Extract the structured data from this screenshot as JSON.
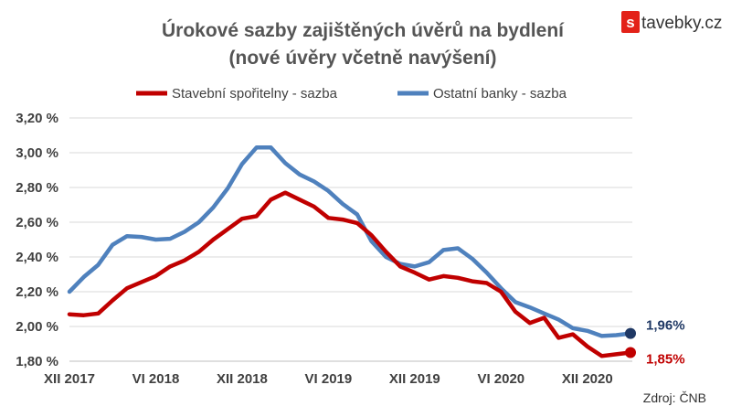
{
  "logo": {
    "mark": "s",
    "text": "tavebky.cz",
    "mark_color": "#e32219"
  },
  "source": "Zdroj: ČNB",
  "chart_data": {
    "type": "line",
    "title": "Úrokové sazby zajištěných úvěrů na bydlení",
    "subtitle": "(nové úvěry včetně navýšení)",
    "xlabel": "",
    "ylabel": "",
    "ylim": [
      1.8,
      3.2
    ],
    "yticks": [
      "1,80 %",
      "2,00 %",
      "2,20 %",
      "2,40 %",
      "2,60 %",
      "2,80 %",
      "3,00 %",
      "3,20 %"
    ],
    "ytick_values": [
      1.8,
      2.0,
      2.2,
      2.4,
      2.6,
      2.8,
      3.0,
      3.2
    ],
    "xticks": [
      "XII 2017",
      "VI 2018",
      "XII 2018",
      "VI 2019",
      "XII 2019",
      "VI 2020",
      "XII 2020"
    ],
    "xtick_index": [
      0,
      6,
      12,
      18,
      24,
      30,
      36
    ],
    "grid": "horizontal",
    "legend_position": "top",
    "x": [
      "XII 2017",
      "I 2018",
      "II 2018",
      "III 2018",
      "IV 2018",
      "V 2018",
      "VI 2018",
      "VII 2018",
      "VIII 2018",
      "IX 2018",
      "X 2018",
      "XI 2018",
      "XII 2018",
      "I 2019",
      "II 2019",
      "III 2019",
      "IV 2019",
      "V 2019",
      "VI 2019",
      "VII 2019",
      "VIII 2019",
      "IX 2019",
      "X 2019",
      "XI 2019",
      "XII 2019",
      "I 2020",
      "II 2020",
      "III 2020",
      "IV 2020",
      "V 2020",
      "VI 2020",
      "VII 2020",
      "VIII 2020",
      "IX 2020",
      "X 2020",
      "XI 2020",
      "XII 2020",
      "I 2021",
      "II 2021",
      "III 2021"
    ],
    "series": [
      {
        "name": "Stavební spořitelny - sazba",
        "color": "#c00000",
        "end_label": "1,85%",
        "values": [
          2.07,
          2.065,
          2.075,
          2.15,
          2.22,
          2.255,
          2.29,
          2.345,
          2.38,
          2.43,
          2.5,
          2.56,
          2.62,
          2.635,
          2.73,
          2.77,
          2.73,
          2.69,
          2.625,
          2.615,
          2.595,
          2.525,
          2.43,
          2.345,
          2.31,
          2.27,
          2.29,
          2.28,
          2.26,
          2.25,
          2.2,
          2.085,
          2.02,
          2.05,
          1.935,
          1.955,
          1.885,
          1.83,
          1.84,
          1.85
        ]
      },
      {
        "name": "Ostatní banky - sazba",
        "color": "#4f81bd",
        "end_label": "1,96%",
        "end_label_color": "#1f3864",
        "values": [
          2.2,
          2.285,
          2.355,
          2.47,
          2.52,
          2.515,
          2.5,
          2.505,
          2.545,
          2.6,
          2.685,
          2.795,
          2.935,
          3.03,
          3.03,
          2.94,
          2.875,
          2.835,
          2.78,
          2.705,
          2.645,
          2.49,
          2.4,
          2.36,
          2.345,
          2.37,
          2.44,
          2.45,
          2.39,
          2.31,
          2.22,
          2.14,
          2.11,
          2.075,
          2.04,
          1.99,
          1.975,
          1.945,
          1.95,
          1.96
        ]
      }
    ]
  }
}
